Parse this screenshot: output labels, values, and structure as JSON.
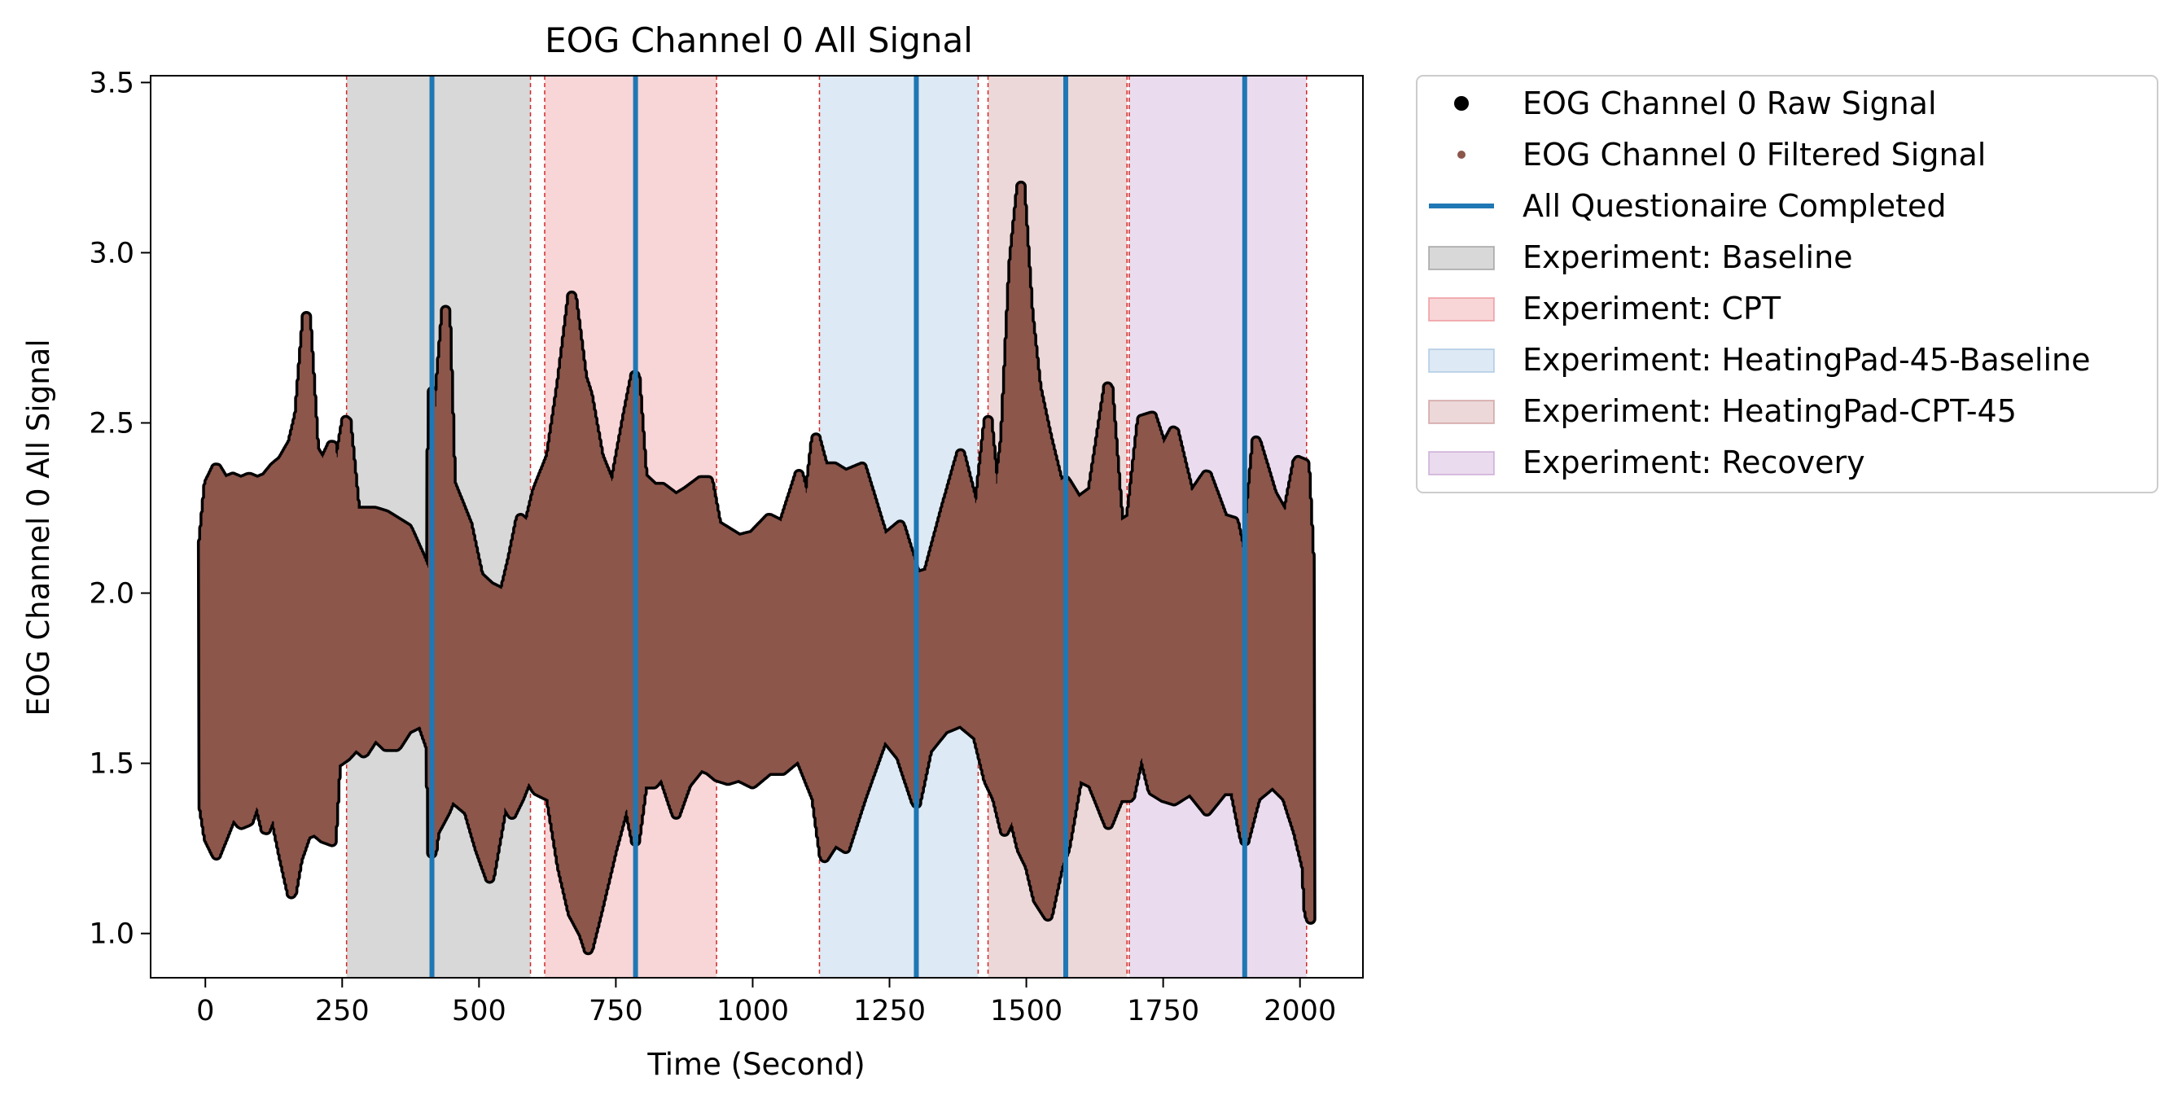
{
  "chart_data": {
    "type": "line",
    "title": "EOG Channel 0 All Signal",
    "xlabel": "Time (Second)",
    "ylabel": "EOG Channel 0 All Signal",
    "xlim": [
      -100,
      2115
    ],
    "ylim": [
      0.87,
      3.52
    ],
    "xticks": [
      0,
      250,
      500,
      750,
      1000,
      1250,
      1500,
      1750,
      2000
    ],
    "xtick_labels": [
      "0",
      "250",
      "500",
      "750",
      "1000",
      "1250",
      "1500",
      "1750",
      "2000"
    ],
    "yticks": [
      1.0,
      1.5,
      2.0,
      2.5,
      3.0,
      3.5
    ],
    "ytick_labels": [
      "1.0",
      "1.5",
      "2.0",
      "2.5",
      "3.0",
      "3.5"
    ],
    "grid": false,
    "legend_placement": "outside-top-right",
    "experiments": [
      {
        "label": "Experiment: Baseline",
        "start": 258,
        "end": 594,
        "color": "#7f7f7f"
      },
      {
        "label": "Experiment: CPT",
        "start": 620,
        "end": 934,
        "color": "#e8747c"
      },
      {
        "label": "Experiment: HeatingPad-45-Baseline",
        "start": 1122,
        "end": 1412,
        "color": "#8fb6d9"
      },
      {
        "label": "Experiment: HeatingPad-CPT-45",
        "start": 1430,
        "end": 1684,
        "color": "#c07d7d"
      },
      {
        "label": "Experiment: Recovery",
        "start": 1688,
        "end": 2012,
        "color": "#b98bc7"
      }
    ],
    "questionnaire_completed": {
      "label": "All Questionaire Completed",
      "color": "#1f77b4",
      "x": [
        414,
        786,
        1299,
        1572,
        1899
      ]
    },
    "series": [
      {
        "name": "EOG Channel 0 Raw Signal",
        "color": "#000000",
        "x": [
          -5,
          5,
          20,
          35,
          50,
          65,
          80,
          95,
          110,
          125,
          140,
          158,
          170,
          185,
          200,
          215,
          232,
          240,
          258,
          275,
          290,
          310,
          330,
          350,
          370,
          395,
          410,
          414,
          420,
          440,
          450,
          480,
          500,
          520,
          545,
          560,
          575,
          590,
          605,
          630,
          650,
          670,
          690,
          700,
          720,
          745,
          770,
          786,
          800,
          820,
          835,
          860,
          880,
          905,
          920,
          935,
          955,
          975,
          1000,
          1030,
          1055,
          1085,
          1100,
          1115,
          1130,
          1150,
          1170,
          1200,
          1240,
          1270,
          1299,
          1320,
          1350,
          1380,
          1410,
          1430,
          1445,
          1460,
          1475,
          1490,
          1505,
          1520,
          1540,
          1560,
          1572,
          1595,
          1620,
          1650,
          1670,
          1690,
          1710,
          1730,
          1750,
          1770,
          1800,
          1830,
          1860,
          1880,
          1899,
          1920,
          1950,
          1975,
          1995,
          2010,
          2015,
          2020
        ],
        "min": [
          1.38,
          1.28,
          1.23,
          1.29,
          1.35,
          1.32,
          1.33,
          1.4,
          1.3,
          1.36,
          1.24,
          1.11,
          1.22,
          1.29,
          1.3,
          1.28,
          1.27,
          1.5,
          1.52,
          1.55,
          1.53,
          1.58,
          1.55,
          1.55,
          1.6,
          1.62,
          1.55,
          1.22,
          1.3,
          1.36,
          1.4,
          1.36,
          1.25,
          1.16,
          1.39,
          1.35,
          1.4,
          1.46,
          1.42,
          1.4,
          1.2,
          1.06,
          1.0,
          0.95,
          1.08,
          1.25,
          1.4,
          1.27,
          1.44,
          1.44,
          1.47,
          1.35,
          1.44,
          1.49,
          1.48,
          1.46,
          1.45,
          1.46,
          1.44,
          1.48,
          1.48,
          1.52,
          1.46,
          1.4,
          1.22,
          1.27,
          1.25,
          1.4,
          1.58,
          1.52,
          1.38,
          1.54,
          1.6,
          1.62,
          1.58,
          1.45,
          1.4,
          1.3,
          1.35,
          1.25,
          1.2,
          1.1,
          1.05,
          1.2,
          1.25,
          1.46,
          1.44,
          1.32,
          1.4,
          1.4,
          1.55,
          1.42,
          1.4,
          1.39,
          1.42,
          1.36,
          1.42,
          1.42,
          1.27,
          1.4,
          1.44,
          1.4,
          1.3,
          1.2,
          1.06,
          1.04,
          1.07
        ],
        "max": [
          2.15,
          2.32,
          2.37,
          2.33,
          2.34,
          2.33,
          2.34,
          2.33,
          2.34,
          2.37,
          2.39,
          2.44,
          2.52,
          2.82,
          2.42,
          2.38,
          2.44,
          2.35,
          2.52,
          2.24,
          2.24,
          2.24,
          2.23,
          2.21,
          2.19,
          2.1,
          2.04,
          2.62,
          2.45,
          2.85,
          2.32,
          2.2,
          2.05,
          2.02,
          2.0,
          2.1,
          2.22,
          2.2,
          2.3,
          2.4,
          2.62,
          2.88,
          2.63,
          2.58,
          2.4,
          2.3,
          2.52,
          2.65,
          2.34,
          2.31,
          2.31,
          2.28,
          2.3,
          2.33,
          2.33,
          2.2,
          2.18,
          2.16,
          2.17,
          2.22,
          2.2,
          2.35,
          2.25,
          2.46,
          2.37,
          2.37,
          2.35,
          2.37,
          2.16,
          2.2,
          2.05,
          2.06,
          2.24,
          2.41,
          2.22,
          2.51,
          2.26,
          2.45,
          2.96,
          3.2,
          2.82,
          2.6,
          2.45,
          2.32,
          2.33,
          2.27,
          2.3,
          2.62,
          2.2,
          2.22,
          2.51,
          2.52,
          2.42,
          2.48,
          2.28,
          2.35,
          2.22,
          2.21,
          2.07,
          2.45,
          2.29,
          2.22,
          2.39,
          2.38,
          2.22,
          2.05,
          1.62
        ]
      },
      {
        "name": "EOG Channel 0 Filtered Signal",
        "color": "#8c564b"
      }
    ]
  }
}
